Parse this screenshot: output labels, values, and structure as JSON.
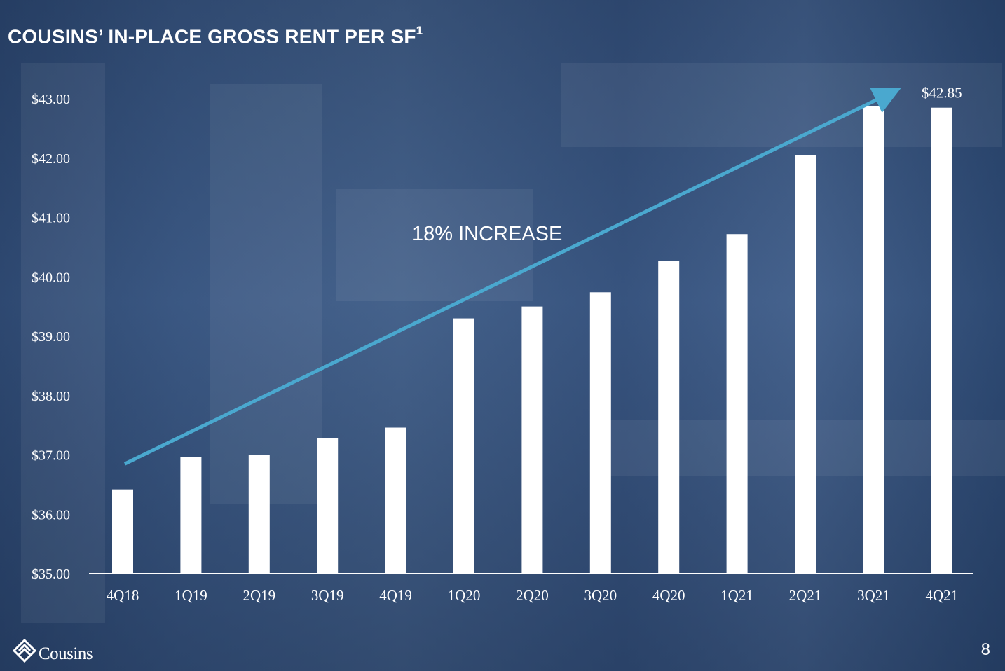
{
  "slide": {
    "title": "COUSINS’ IN-PLACE GROSS RENT PER SF",
    "title_superscript": "1",
    "page_number": "8",
    "logo_text": "Cousins"
  },
  "colors": {
    "bar": "#ffffff",
    "trend_arrow": "#4aa8cf",
    "text": "#ffffff"
  },
  "chart_data": {
    "type": "bar",
    "title": "COUSINS’ IN-PLACE GROSS RENT PER SF",
    "categories": [
      "4Q18",
      "1Q19",
      "2Q19",
      "3Q19",
      "4Q19",
      "1Q20",
      "2Q20",
      "3Q20",
      "4Q20",
      "1Q21",
      "2Q21",
      "3Q21",
      "4Q21"
    ],
    "values": [
      36.42,
      36.97,
      37.0,
      37.28,
      37.46,
      39.3,
      39.5,
      39.74,
      40.27,
      40.72,
      42.05,
      42.88,
      42.85
    ],
    "ylim": [
      35,
      43
    ],
    "yticks": [
      "$35.00",
      "$36.00",
      "$37.00",
      "$38.00",
      "$39.00",
      "$40.00",
      "$41.00",
      "$42.00",
      "$43.00"
    ],
    "data_labels": [
      {
        "category": "4Q21",
        "text": "$42.85"
      }
    ],
    "annotation": "18% INCREASE",
    "trend_arrow": {
      "from": {
        "category": "4Q18",
        "value": 36.85
      },
      "to": {
        "category": "4Q21",
        "value": 43.08
      }
    },
    "grid": false,
    "legend": "none"
  }
}
